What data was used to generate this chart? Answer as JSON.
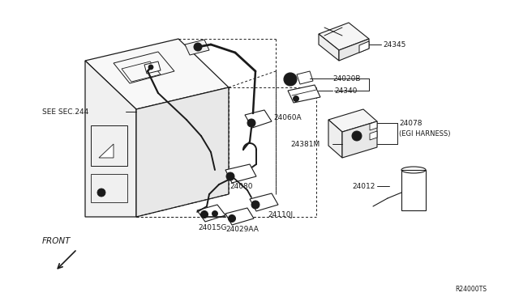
{
  "background_color": "#ffffff",
  "line_color": "#1a1a1a",
  "fig_width": 6.4,
  "fig_height": 3.72,
  "dpi": 100,
  "labels": {
    "see_sec": "SEE SEC.244",
    "front": "FRONT",
    "part_24345": "24345",
    "part_24020B": "24020B",
    "part_24340": "24340",
    "part_24381M": "24381M",
    "part_24078": "24078",
    "part_egi": "(EGI HARNESS)",
    "part_24060A": "24060A",
    "part_24080": "24080",
    "part_24110J": "24110J",
    "part_24012": "24012",
    "part_24015G": "24015G",
    "part_24029AA": "24029AA",
    "ref_code": "R24000TS"
  },
  "font_size": 6.5,
  "font_size_ref": 5.5
}
